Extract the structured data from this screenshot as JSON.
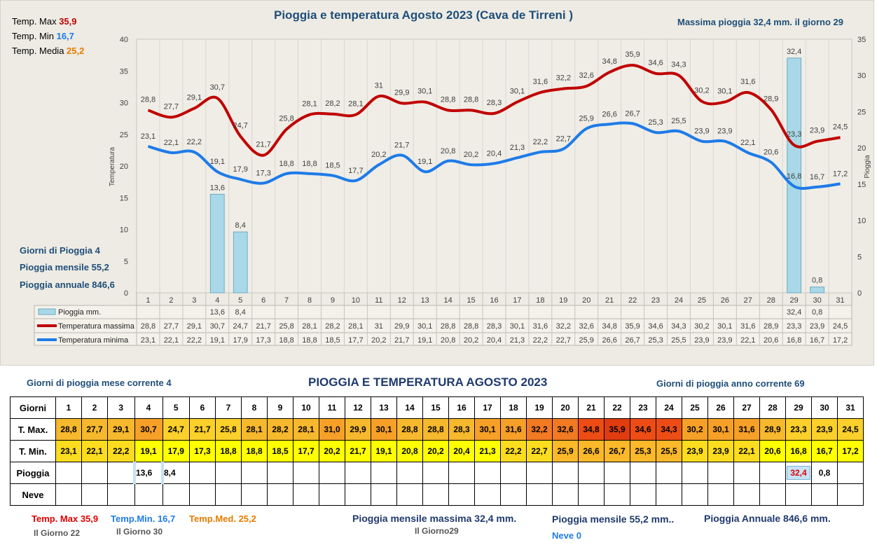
{
  "top_stats": {
    "tmax_label": "Temp. Max",
    "tmax_value": "35,9",
    "tmin_label": "Temp. Min",
    "tmin_value": "16,7",
    "tmed_label": "Temp. Media",
    "tmed_value": "25,2"
  },
  "chart_title": "Pioggia e temperatura Agosto 2023 (Cava de Tirreni )",
  "max_rain_note": "Massima pioggia  32,4 mm. il giorno  29",
  "left_stats": {
    "rain_days": "Giorni di Pioggia  4",
    "monthly_rain": "Pioggia mensile  55,2",
    "annual_rain": "Pioggia annuale  846,6"
  },
  "colors": {
    "tmax": "#c00000",
    "tmin": "#1e7be8",
    "rain_bar": "#a9d9e8",
    "rain_bar_edge": "#6aaac4"
  },
  "chart_data": {
    "type": "line",
    "x": [
      1,
      2,
      3,
      4,
      5,
      6,
      7,
      8,
      9,
      10,
      11,
      12,
      13,
      14,
      15,
      16,
      17,
      18,
      19,
      20,
      21,
      22,
      23,
      24,
      25,
      26,
      27,
      28,
      29,
      30,
      31
    ],
    "ylabel": "Temperatura",
    "y2label": "Pioggia",
    "ylim": [
      0,
      40
    ],
    "y2lim": [
      0,
      35
    ],
    "yticks": [
      0,
      5,
      10,
      15,
      20,
      25,
      30,
      35,
      40
    ],
    "y2ticks": [
      0,
      5,
      10,
      15,
      20,
      25,
      30,
      35
    ],
    "series": [
      {
        "name": "Temperatura massima",
        "labels": [
          "28,8",
          "27,7",
          "29,1",
          "30,7",
          "24,7",
          "21,7",
          "25,8",
          "28,1",
          "28,2",
          "28,1",
          "31",
          "29,9",
          "30,1",
          "28,8",
          "28,8",
          "28,3",
          "30,1",
          "31,6",
          "32,2",
          "32,6",
          "34,8",
          "35,9",
          "34,6",
          "34,3",
          "30,2",
          "30,1",
          "31,6",
          "28,9",
          "23,3",
          "23,9",
          "24,5"
        ],
        "values": [
          28.8,
          27.7,
          29.1,
          30.7,
          24.7,
          21.7,
          25.8,
          28.1,
          28.2,
          28.1,
          31,
          29.9,
          30.1,
          28.8,
          28.8,
          28.3,
          30.1,
          31.6,
          32.2,
          32.6,
          34.8,
          35.9,
          34.6,
          34.3,
          30.2,
          30.1,
          31.6,
          28.9,
          23.3,
          23.9,
          24.5
        ]
      },
      {
        "name": "Temperatura minima",
        "labels": [
          "23,1",
          "22,1",
          "22,2",
          "19,1",
          "17,9",
          "17,3",
          "18,8",
          "18,8",
          "18,5",
          "17,7",
          "20,2",
          "21,7",
          "19,1",
          "20,8",
          "20,2",
          "20,4",
          "21,3",
          "22,2",
          "22,7",
          "25,9",
          "26,6",
          "26,7",
          "25,3",
          "25,5",
          "23,9",
          "23,9",
          "22,1",
          "20,6",
          "16,8",
          "16,7",
          "17,2"
        ],
        "values": [
          23.1,
          22.1,
          22.2,
          19.1,
          17.9,
          17.3,
          18.8,
          18.8,
          18.5,
          17.7,
          20.2,
          21.7,
          19.1,
          20.8,
          20.2,
          20.4,
          21.3,
          22.2,
          22.7,
          25.9,
          26.6,
          26.7,
          25.3,
          25.5,
          23.9,
          23.9,
          22.1,
          20.6,
          16.8,
          16.7,
          17.2
        ]
      },
      {
        "name": "Pioggia mm.",
        "axis": "y2",
        "type": "bar",
        "labels": [
          "",
          "",
          "",
          "13,6",
          "8,4",
          "",
          "",
          "",
          "",
          "",
          "",
          "",
          "",
          "",
          "",
          "",
          "",
          "",
          "",
          "",
          "",
          "",
          "",
          "",
          "",
          "",
          "",
          "",
          "32,4",
          "0,8",
          ""
        ],
        "values": [
          0,
          0,
          0,
          13.6,
          8.4,
          0,
          0,
          0,
          0,
          0,
          0,
          0,
          0,
          0,
          0,
          0,
          0,
          0,
          0,
          0,
          0,
          0,
          0,
          0,
          0,
          0,
          0,
          0,
          32.4,
          0.8,
          0
        ]
      }
    ]
  },
  "bottom": {
    "rain_days_month": "Giorni di pioggia mese corrente   4",
    "title": "PIOGGIA E TEMPERATURA AGOSTO 2023",
    "rain_days_year": "Giorni di pioggia anno corrente  69",
    "table": {
      "row_headers": [
        "Giorni",
        "T. Max.",
        "T. Min.",
        "Pioggia",
        "Neve"
      ],
      "days": [
        "1",
        "2",
        "3",
        "4",
        "5",
        "6",
        "7",
        "8",
        "9",
        "10",
        "11",
        "12",
        "13",
        "14",
        "15",
        "16",
        "17",
        "18",
        "19",
        "20",
        "21",
        "22",
        "23",
        "24",
        "25",
        "26",
        "27",
        "28",
        "29",
        "30",
        "31"
      ],
      "tmax": [
        "28,8",
        "27,7",
        "29,1",
        "30,7",
        "24,7",
        "21,7",
        "25,8",
        "28,1",
        "28,2",
        "28,1",
        "31,0",
        "29,9",
        "30,1",
        "28,8",
        "28,8",
        "28,3",
        "30,1",
        "31,6",
        "32,2",
        "32,6",
        "34,8",
        "35,9",
        "34,6",
        "34,3",
        "30,2",
        "30,1",
        "31,6",
        "28,9",
        "23,3",
        "23,9",
        "24,5"
      ],
      "tmin": [
        "23,1",
        "22,1",
        "22,2",
        "19,1",
        "17,9",
        "17,3",
        "18,8",
        "18,8",
        "18,5",
        "17,7",
        "20,2",
        "21,7",
        "19,1",
        "20,8",
        "20,2",
        "20,4",
        "21,3",
        "22,2",
        "22,7",
        "25,9",
        "26,6",
        "26,7",
        "25,3",
        "25,5",
        "23,9",
        "23,9",
        "22,1",
        "20,6",
        "16,8",
        "16,7",
        "17,2"
      ],
      "rain": [
        "",
        "",
        "",
        "13,6",
        "8,4",
        "",
        "",
        "",
        "",
        "",
        "",
        "",
        "",
        "",
        "",
        "",
        "",
        "",
        "",
        "",
        "",
        "",
        "",
        "",
        "",
        "",
        "",
        "",
        "32,4",
        "0,8",
        ""
      ],
      "snow": [
        "",
        "",
        "",
        "",
        "",
        "",
        "",
        "",
        "",
        "",
        "",
        "",
        "",
        "",
        "",
        "",
        "",
        "",
        "",
        "",
        "",
        "",
        "",
        "",
        "",
        "",
        "",
        "",
        "",
        "",
        ""
      ]
    },
    "footer": {
      "tmax_label": "Temp. Max",
      "tmax_value": "35,9",
      "tmin_label": "Temp.Min.",
      "tmin_value": "16,7",
      "tmed_label": "Temp.Med.",
      "tmed_value": "25,2",
      "tmax_day": "Il Giorno  22",
      "tmin_day": "Il Giorno 30",
      "max_rain_label": "Pioggia mensile massima",
      "max_rain_value": "32,4  mm.",
      "max_rain_day": "Il Giorno29",
      "monthly_label": "Pioggia mensile",
      "monthly_value": "55,2  mm..",
      "annual_label": "Pioggia Annuale",
      "annual_value": "846,6   mm.",
      "snow": "Neve 0"
    }
  }
}
